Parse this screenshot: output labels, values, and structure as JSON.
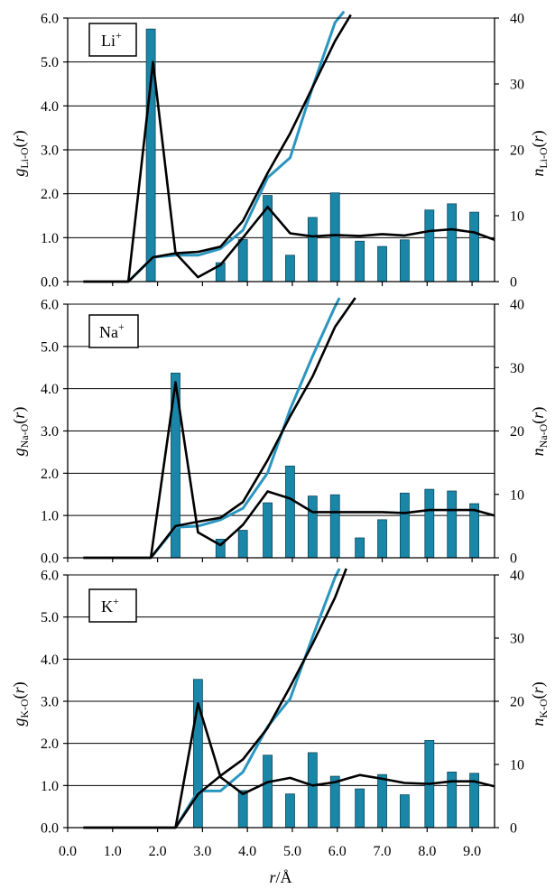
{
  "colors": {
    "bars": "#1a86a8",
    "line_black": "#000000",
    "line_blue": "#2a96c0"
  },
  "shared_x": {
    "label_italic": "r",
    "label_unit": "/Å",
    "ticks": [
      "0.0",
      "1.0",
      "2.0",
      "3.0",
      "4.0",
      "5.0",
      "6.0",
      "7.0",
      "8.0",
      "9.0"
    ]
  },
  "chart_data": [
    {
      "type": "bar",
      "ion_label": "Li",
      "ion_sup": "+",
      "y_label": {
        "g": "g",
        "sub": "Li-O",
        "arg": "(",
        "r": "r",
        "close": ")"
      },
      "y2_label": {
        "n": "n",
        "sub": "Li-O",
        "arg": "(",
        "r": "r",
        "close": ")"
      },
      "xlim": [
        0,
        9.5
      ],
      "ylim": [
        0,
        6
      ],
      "y2lim": [
        0,
        40
      ],
      "yticks": [
        "0.0",
        "1.0",
        "2.0",
        "3.0",
        "4.0",
        "5.0",
        "6.0"
      ],
      "y2ticks": [
        "0",
        "10",
        "20",
        "30",
        "40"
      ],
      "bars": {
        "x": [
          1.85,
          3.4,
          3.9,
          4.45,
          4.95,
          5.45,
          5.95,
          6.5,
          7.0,
          7.5,
          8.05,
          8.55,
          9.05
        ],
        "values": [
          5.75,
          0.43,
          0.96,
          1.96,
          0.6,
          1.46,
          2.02,
          0.92,
          0.8,
          0.95,
          1.63,
          1.77,
          1.58
        ]
      },
      "g_line": {
        "x": [
          0.35,
          1.35,
          1.9,
          2.4,
          2.9,
          3.4,
          3.9,
          4.45,
          4.95,
          5.45,
          5.95,
          6.5,
          7.0,
          7.5,
          8.05,
          8.55,
          9.05,
          9.5
        ],
        "y": [
          0.0,
          0.0,
          5.0,
          0.65,
          0.1,
          0.38,
          1.0,
          1.7,
          1.1,
          1.03,
          1.06,
          1.04,
          1.08,
          1.05,
          1.15,
          1.19,
          1.12,
          0.95
        ]
      },
      "n_black": {
        "x": [
          0.35,
          1.35,
          1.9,
          2.4,
          2.9,
          3.4,
          3.9,
          4.45,
          4.95,
          5.45,
          5.95,
          6.3
        ],
        "y": [
          0,
          0,
          3.7,
          4.3,
          4.5,
          5.3,
          9.2,
          16.5,
          22.5,
          29.5,
          36.5,
          40.5
        ]
      },
      "n_blue": {
        "x": [
          1.35,
          1.9,
          2.4,
          2.9,
          3.4,
          3.9,
          4.45,
          4.95,
          5.45,
          5.95,
          6.15
        ],
        "y": [
          0,
          3.7,
          4.0,
          4.0,
          5.0,
          7.8,
          15.8,
          18.8,
          29.5,
          39.3,
          41
        ]
      }
    },
    {
      "type": "bar",
      "ion_label": "Na",
      "ion_sup": "+",
      "y_label": {
        "g": "g",
        "sub": "Na-O",
        "arg": "(",
        "r": "r",
        "close": ")"
      },
      "y2_label": {
        "n": "n",
        "sub": "Na-O",
        "arg": "(",
        "r": "r",
        "close": ")"
      },
      "xlim": [
        0,
        9.5
      ],
      "ylim": [
        0,
        6
      ],
      "y2lim": [
        0,
        40
      ],
      "yticks": [
        "0.0",
        "1.0",
        "2.0",
        "3.0",
        "4.0",
        "5.0",
        "6.0"
      ],
      "y2ticks": [
        "0",
        "10",
        "20",
        "30",
        "40"
      ],
      "bars": {
        "x": [
          2.4,
          3.4,
          3.9,
          4.45,
          4.95,
          5.45,
          5.95,
          6.5,
          7.0,
          7.5,
          8.05,
          8.55,
          9.05
        ],
        "values": [
          4.37,
          0.44,
          0.65,
          1.3,
          2.17,
          1.46,
          1.49,
          0.47,
          0.9,
          1.53,
          1.62,
          1.58,
          1.28
        ]
      },
      "g_line": {
        "x": [
          0.35,
          1.85,
          2.4,
          2.9,
          3.4,
          3.9,
          4.45,
          4.95,
          5.45,
          5.95,
          6.5,
          7.0,
          7.5,
          8.05,
          8.55,
          9.05,
          9.5
        ],
        "y": [
          0.0,
          0.0,
          4.15,
          0.6,
          0.3,
          0.78,
          1.57,
          1.4,
          1.08,
          1.08,
          1.08,
          1.08,
          1.06,
          1.13,
          1.13,
          1.13,
          1.0
        ]
      },
      "n_black": {
        "x": [
          0.35,
          1.85,
          2.4,
          2.9,
          3.4,
          3.9,
          4.45,
          4.95,
          5.45,
          5.95,
          6.4
        ],
        "y": [
          0,
          0,
          5.0,
          5.7,
          6.3,
          8.8,
          15.4,
          22.3,
          28.6,
          36.4,
          41
        ]
      },
      "n_blue": {
        "x": [
          1.85,
          2.4,
          2.9,
          3.4,
          3.9,
          4.45,
          4.95,
          5.45,
          5.95,
          6.05
        ],
        "y": [
          0,
          4.8,
          5.0,
          6.0,
          7.8,
          13.4,
          23.4,
          31.8,
          39.6,
          41
        ]
      }
    },
    {
      "type": "bar",
      "ion_label": "K",
      "ion_sup": "+",
      "y_label": {
        "g": "g",
        "sub": "K-O",
        "arg": "(",
        "r": "r",
        "close": ")"
      },
      "y2_label": {
        "n": "n",
        "sub": "K-O",
        "arg": "(",
        "r": "r",
        "close": ")"
      },
      "xlim": [
        0,
        9.5
      ],
      "ylim": [
        0,
        6
      ],
      "y2lim": [
        0,
        40
      ],
      "yticks": [
        "0.0",
        "1.0",
        "2.0",
        "3.0",
        "4.0",
        "5.0",
        "6.0"
      ],
      "y2ticks": [
        "0",
        "10",
        "20",
        "30",
        "40"
      ],
      "bars": {
        "x": [
          2.9,
          3.9,
          4.45,
          4.95,
          5.45,
          5.95,
          6.5,
          7.0,
          7.5,
          8.05,
          8.55,
          9.05
        ],
        "values": [
          3.52,
          0.88,
          1.72,
          0.8,
          1.78,
          1.22,
          0.92,
          1.26,
          0.78,
          2.07,
          1.32,
          1.29
        ]
      },
      "g_line": {
        "x": [
          0.35,
          2.4,
          2.9,
          3.4,
          3.9,
          4.45,
          4.95,
          5.45,
          5.95,
          6.5,
          7.0,
          7.5,
          8.05,
          8.55,
          9.05,
          9.5
        ],
        "y": [
          0.0,
          0.0,
          2.95,
          1.2,
          0.8,
          1.08,
          1.18,
          1.0,
          1.08,
          1.25,
          1.16,
          1.06,
          1.04,
          1.1,
          1.1,
          0.98
        ]
      },
      "n_black": {
        "x": [
          0.35,
          2.4,
          2.9,
          3.4,
          3.9,
          4.45,
          4.95,
          5.45,
          5.95,
          6.2
        ],
        "y": [
          0,
          0,
          5.3,
          8.2,
          10.8,
          15.8,
          22.3,
          29.1,
          36.4,
          41
        ]
      },
      "n_blue": {
        "x": [
          2.4,
          2.9,
          3.4,
          3.9,
          4.45,
          4.95,
          5.45,
          5.95,
          6.05
        ],
        "y": [
          0,
          5.8,
          5.8,
          8.8,
          16.0,
          20.4,
          30.2,
          39.6,
          41
        ]
      }
    }
  ]
}
